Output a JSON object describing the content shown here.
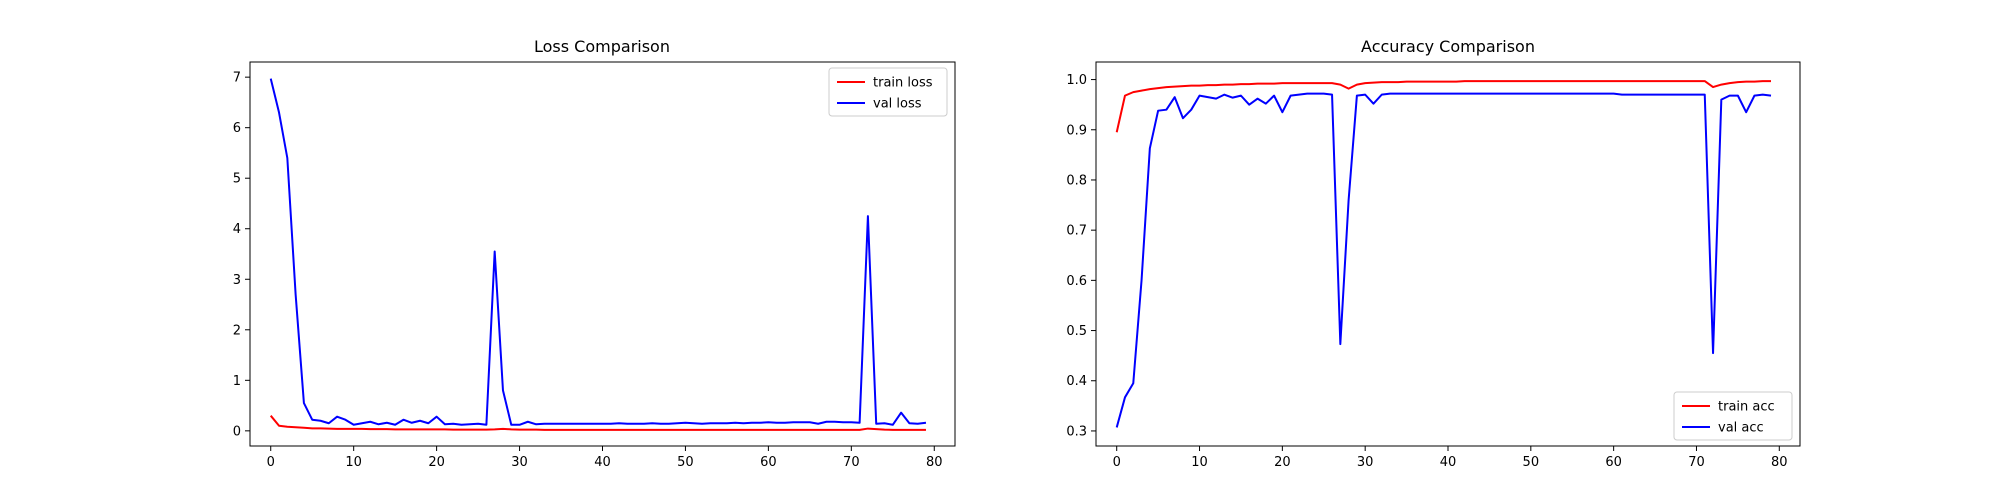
{
  "chart_data": [
    {
      "type": "line",
      "title": "Loss Comparison",
      "xlabel": "",
      "ylabel": "",
      "xlim": [
        -2.5,
        82.5
      ],
      "ylim": [
        -0.3,
        7.3
      ],
      "xticks": [
        0,
        10,
        20,
        30,
        40,
        50,
        60,
        70,
        80
      ],
      "yticks": [
        0,
        1,
        2,
        3,
        4,
        5,
        6,
        7
      ],
      "grid": false,
      "legend": "upper-right",
      "series": [
        {
          "name": "train loss",
          "color": "#ff0000",
          "values": [
            0.3,
            0.1,
            0.08,
            0.07,
            0.06,
            0.05,
            0.05,
            0.045,
            0.04,
            0.04,
            0.04,
            0.04,
            0.035,
            0.035,
            0.035,
            0.03,
            0.03,
            0.03,
            0.03,
            0.03,
            0.03,
            0.03,
            0.025,
            0.025,
            0.025,
            0.025,
            0.025,
            0.03,
            0.04,
            0.03,
            0.025,
            0.025,
            0.025,
            0.02,
            0.02,
            0.02,
            0.02,
            0.02,
            0.02,
            0.02,
            0.02,
            0.02,
            0.02,
            0.02,
            0.02,
            0.02,
            0.02,
            0.02,
            0.02,
            0.02,
            0.02,
            0.02,
            0.02,
            0.02,
            0.02,
            0.02,
            0.02,
            0.02,
            0.02,
            0.02,
            0.02,
            0.02,
            0.02,
            0.02,
            0.02,
            0.02,
            0.02,
            0.02,
            0.02,
            0.02,
            0.02,
            0.02,
            0.045,
            0.035,
            0.025,
            0.02,
            0.02,
            0.02,
            0.02,
            0.02
          ]
        },
        {
          "name": "val loss",
          "color": "#0000ff",
          "values": [
            6.97,
            6.3,
            5.4,
            2.7,
            0.55,
            0.22,
            0.2,
            0.15,
            0.28,
            0.22,
            0.12,
            0.15,
            0.18,
            0.13,
            0.16,
            0.12,
            0.22,
            0.16,
            0.2,
            0.15,
            0.28,
            0.13,
            0.14,
            0.12,
            0.13,
            0.14,
            0.12,
            3.55,
            0.8,
            0.12,
            0.12,
            0.18,
            0.13,
            0.14,
            0.14,
            0.14,
            0.14,
            0.14,
            0.14,
            0.14,
            0.14,
            0.14,
            0.15,
            0.14,
            0.14,
            0.14,
            0.15,
            0.14,
            0.14,
            0.15,
            0.16,
            0.15,
            0.14,
            0.15,
            0.15,
            0.15,
            0.16,
            0.15,
            0.16,
            0.16,
            0.17,
            0.16,
            0.16,
            0.17,
            0.17,
            0.17,
            0.14,
            0.18,
            0.18,
            0.17,
            0.17,
            0.16,
            4.25,
            0.14,
            0.15,
            0.12,
            0.36,
            0.15,
            0.14,
            0.16
          ]
        }
      ]
    },
    {
      "type": "line",
      "title": "Accuracy Comparison",
      "xlabel": "",
      "ylabel": "",
      "xlim": [
        -2.5,
        82.5
      ],
      "ylim": [
        0.27,
        1.035
      ],
      "xticks": [
        0,
        10,
        20,
        30,
        40,
        50,
        60,
        70,
        80
      ],
      "yticks": [
        0.3,
        0.4,
        0.5,
        0.6,
        0.7,
        0.8,
        0.9,
        1.0
      ],
      "grid": false,
      "legend": "lower-right",
      "series": [
        {
          "name": "train acc",
          "color": "#ff0000",
          "values": [
            0.895,
            0.968,
            0.975,
            0.978,
            0.981,
            0.983,
            0.985,
            0.986,
            0.987,
            0.988,
            0.988,
            0.989,
            0.989,
            0.99,
            0.99,
            0.991,
            0.991,
            0.992,
            0.992,
            0.992,
            0.993,
            0.993,
            0.993,
            0.993,
            0.993,
            0.993,
            0.993,
            0.99,
            0.982,
            0.99,
            0.993,
            0.994,
            0.995,
            0.995,
            0.995,
            0.996,
            0.996,
            0.996,
            0.996,
            0.996,
            0.996,
            0.996,
            0.997,
            0.997,
            0.997,
            0.997,
            0.997,
            0.997,
            0.997,
            0.997,
            0.997,
            0.997,
            0.997,
            0.997,
            0.997,
            0.997,
            0.997,
            0.997,
            0.997,
            0.997,
            0.997,
            0.997,
            0.997,
            0.997,
            0.997,
            0.997,
            0.997,
            0.997,
            0.997,
            0.997,
            0.997,
            0.997,
            0.985,
            0.99,
            0.993,
            0.995,
            0.996,
            0.996,
            0.997,
            0.997
          ]
        },
        {
          "name": "val acc",
          "color": "#0000ff",
          "values": [
            0.307,
            0.367,
            0.395,
            0.6,
            0.863,
            0.938,
            0.94,
            0.965,
            0.923,
            0.94,
            0.968,
            0.965,
            0.962,
            0.97,
            0.964,
            0.968,
            0.95,
            0.962,
            0.952,
            0.968,
            0.935,
            0.968,
            0.97,
            0.972,
            0.972,
            0.972,
            0.97,
            0.473,
            0.76,
            0.968,
            0.97,
            0.952,
            0.97,
            0.972,
            0.972,
            0.972,
            0.972,
            0.972,
            0.972,
            0.972,
            0.972,
            0.972,
            0.972,
            0.972,
            0.972,
            0.972,
            0.972,
            0.972,
            0.972,
            0.972,
            0.972,
            0.972,
            0.972,
            0.972,
            0.972,
            0.972,
            0.972,
            0.972,
            0.972,
            0.972,
            0.972,
            0.97,
            0.97,
            0.97,
            0.97,
            0.97,
            0.97,
            0.97,
            0.97,
            0.97,
            0.97,
            0.97,
            0.455,
            0.96,
            0.968,
            0.968,
            0.935,
            0.968,
            0.97,
            0.968
          ]
        }
      ]
    }
  ]
}
